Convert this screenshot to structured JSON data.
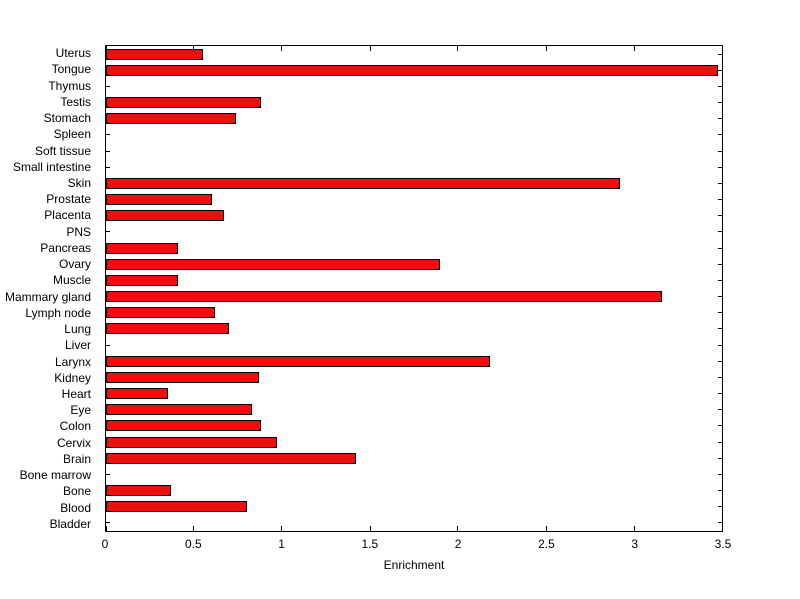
{
  "chart_data": {
    "type": "bar",
    "orientation": "horizontal",
    "title": "",
    "xlabel": "Enrichment",
    "ylabel": "",
    "xlim": [
      0,
      3.5
    ],
    "xticks": [
      0,
      0.5,
      1,
      1.5,
      2,
      2.5,
      3,
      3.5
    ],
    "xtick_labels": [
      "0",
      "0.5",
      "1",
      "1.5",
      "2",
      "2.5",
      "3",
      "3.5"
    ],
    "category_order": "top-to-bottom",
    "categories": [
      "Uterus",
      "Tongue",
      "Thymus",
      "Testis",
      "Stomach",
      "Spleen",
      "Soft tissue",
      "Small intestine",
      "Skin",
      "Prostate",
      "Placenta",
      "PNS",
      "Pancreas",
      "Ovary",
      "Muscle",
      "Mammary gland",
      "Lymph node",
      "Lung",
      "Liver",
      "Larynx",
      "Kidney",
      "Heart",
      "Eye",
      "Colon",
      "Cervix",
      "Brain",
      "Bone marrow",
      "Bone",
      "Blood",
      "Bladder"
    ],
    "values": [
      0.55,
      3.48,
      0,
      0.88,
      0.74,
      0,
      0,
      0,
      2.92,
      0.6,
      0.67,
      0,
      0.41,
      1.9,
      0.41,
      3.16,
      0.62,
      0.7,
      0,
      2.18,
      0.87,
      0.35,
      0.83,
      0.88,
      0.97,
      1.42,
      0,
      0.37,
      0.8,
      0
    ],
    "grid": false,
    "legend": null,
    "bar_color": "#f20c0c",
    "bar_edge_color": "#000000",
    "axis_color": "#000000",
    "background_color": "#ffffff"
  }
}
